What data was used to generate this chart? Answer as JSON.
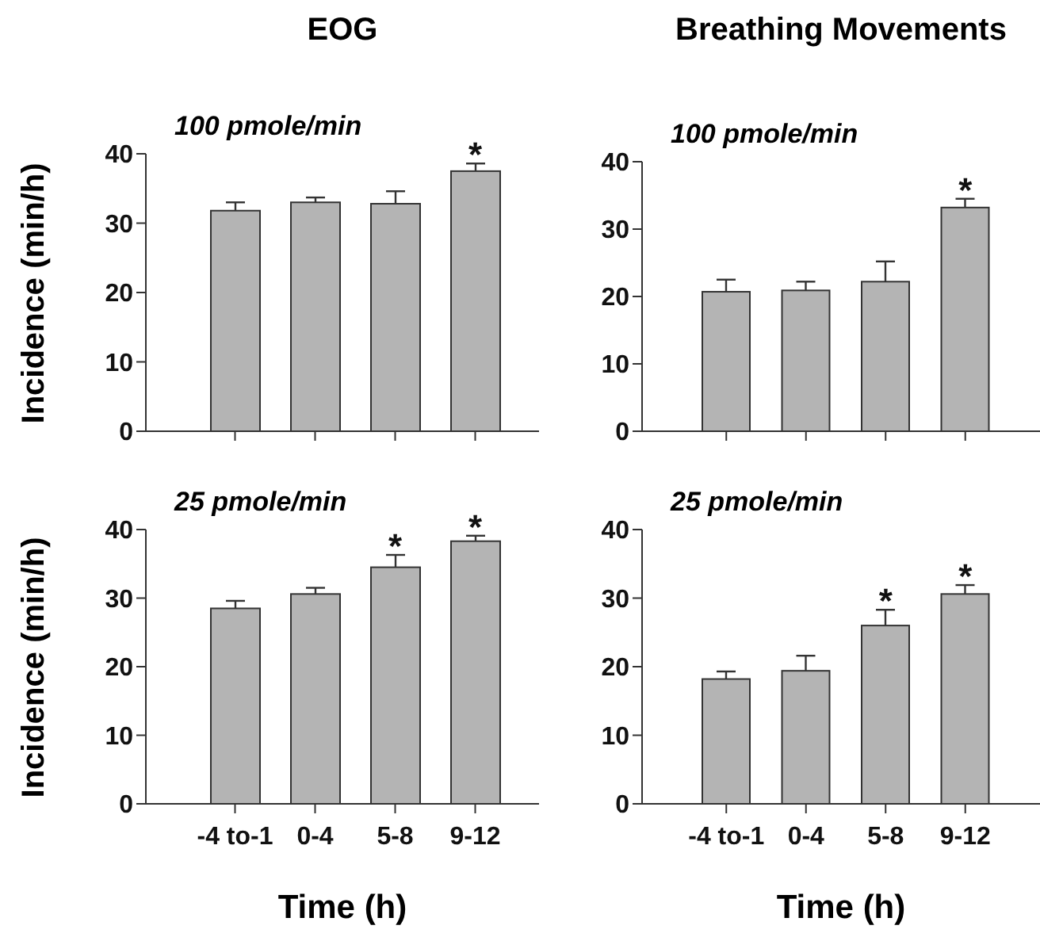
{
  "chart_data": [
    {
      "type": "bar",
      "title": "EOG",
      "subtitle": "100 pmole/min",
      "ylabel": "Incidence (min/h)",
      "categories": [
        "-4 to-1",
        "0-4",
        "5-8",
        "9-12"
      ],
      "values": [
        31.8,
        33.0,
        32.8,
        37.5
      ],
      "errors": [
        1.2,
        0.7,
        1.8,
        1.1
      ],
      "color": "#b4b4b4",
      "ylim": [
        0,
        40
      ],
      "yticks": [
        0,
        10,
        20,
        30,
        40
      ],
      "tick_labels": "y",
      "annotations": [
        {
          "text": "*",
          "x": "9-12",
          "y": 38.6
        }
      ]
    },
    {
      "type": "bar",
      "title": "Breathing Movements",
      "subtitle": "100 pmole/min",
      "categories": [
        "-4 to-1",
        "0-4",
        "5-8",
        "9-12"
      ],
      "values": [
        20.7,
        20.9,
        22.2,
        33.2
      ],
      "errors": [
        1.8,
        1.3,
        3.0,
        1.3
      ],
      "color": "#b4b4b4",
      "ylim": [
        0,
        40
      ],
      "yticks": [
        0,
        10,
        20,
        30,
        40
      ],
      "tick_labels": "y",
      "annotations": [
        {
          "text": "*",
          "x": "9-12",
          "y": 34.5
        }
      ]
    },
    {
      "type": "bar",
      "subtitle": "25 pmole/min",
      "ylabel": "Incidence (min/h)",
      "xlabel": "Time (h)",
      "categories": [
        "-4 to-1",
        "0-4",
        "5-8",
        "9-12"
      ],
      "values": [
        28.5,
        30.6,
        34.5,
        38.3
      ],
      "errors": [
        1.1,
        0.9,
        1.8,
        0.8
      ],
      "color": "#b4b4b4",
      "ylim": [
        0,
        40
      ],
      "yticks": [
        0,
        10,
        20,
        30,
        40
      ],
      "annotations": [
        {
          "text": "*",
          "x": "5-8",
          "y": 36.3
        },
        {
          "text": "*",
          "x": "9-12",
          "y": 39.1
        }
      ]
    },
    {
      "type": "bar",
      "subtitle": "25 pmole/min",
      "xlabel": "Time (h)",
      "categories": [
        "-4 to-1",
        "0-4",
        "5-8",
        "9-12"
      ],
      "values": [
        18.2,
        19.4,
        26.0,
        30.6
      ],
      "errors": [
        1.1,
        2.2,
        2.3,
        1.3
      ],
      "color": "#b4b4b4",
      "ylim": [
        0,
        40
      ],
      "yticks": [
        0,
        10,
        20,
        30,
        40
      ],
      "annotations": [
        {
          "text": "*",
          "x": "5-8",
          "y": 28.3
        },
        {
          "text": "*",
          "x": "9-12",
          "y": 31.9
        }
      ]
    }
  ]
}
